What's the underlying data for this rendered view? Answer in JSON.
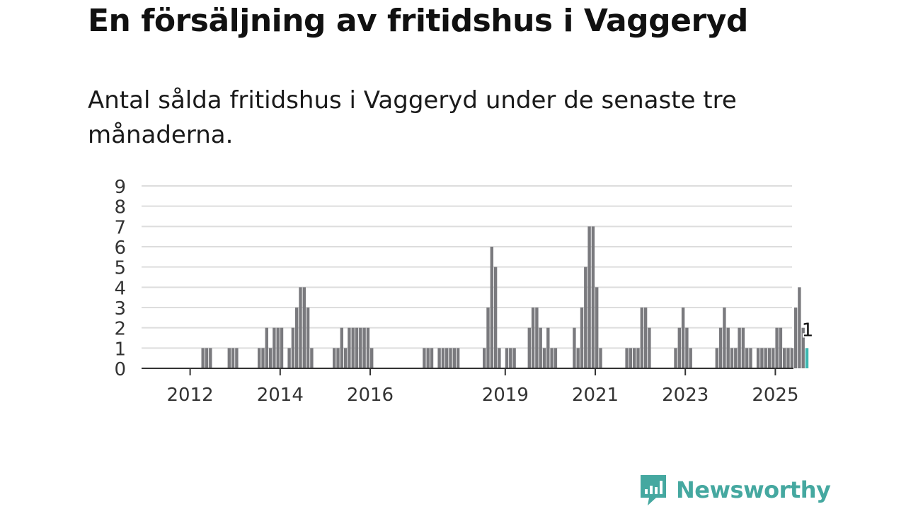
{
  "header": {
    "title": "En försäljning av fritidshus i Vaggeryd",
    "subtitle": "Antal sålda fritidshus i Vaggeryd under de senaste tre månaderna."
  },
  "brand": {
    "name": "Newsworthy",
    "icon": "newsworthy-bar-chart-logo-icon"
  },
  "colors": {
    "bar": "#7a7a7e",
    "highlight": "#3cb7b0",
    "grid": "#dddddd",
    "axis": "#333333",
    "brand": "#45a8a0"
  },
  "chart_data": {
    "type": "bar",
    "title": "En försäljning av fritidshus i Vaggeryd",
    "subtitle": "Antal sålda fritidshus i Vaggeryd under de senaste tre månaderna.",
    "xlabel": "",
    "ylabel": "",
    "ylim": [
      0,
      9
    ],
    "y_ticks": [
      0,
      1,
      2,
      3,
      4,
      5,
      6,
      7,
      8,
      9
    ],
    "x_ticks": [
      "2012",
      "2014",
      "2016",
      "2019",
      "2021",
      "2023",
      "2025"
    ],
    "x_start": "2011-01",
    "x_end": "2025-01",
    "grid": true,
    "legend": "none",
    "highlight_label": "1",
    "bars": [
      {
        "month": "2012-04",
        "value": 1
      },
      {
        "month": "2012-05",
        "value": 1
      },
      {
        "month": "2012-06",
        "value": 1
      },
      {
        "month": "2012-11",
        "value": 1
      },
      {
        "month": "2012-12",
        "value": 1
      },
      {
        "month": "2013-01",
        "value": 1
      },
      {
        "month": "2013-07",
        "value": 1
      },
      {
        "month": "2013-08",
        "value": 1
      },
      {
        "month": "2013-09",
        "value": 2
      },
      {
        "month": "2013-10",
        "value": 1
      },
      {
        "month": "2013-11",
        "value": 2
      },
      {
        "month": "2013-12",
        "value": 2
      },
      {
        "month": "2014-01",
        "value": 2
      },
      {
        "month": "2014-03",
        "value": 1
      },
      {
        "month": "2014-04",
        "value": 2
      },
      {
        "month": "2014-05",
        "value": 3
      },
      {
        "month": "2014-06",
        "value": 4
      },
      {
        "month": "2014-07",
        "value": 4
      },
      {
        "month": "2014-08",
        "value": 3
      },
      {
        "month": "2014-09",
        "value": 1
      },
      {
        "month": "2015-03",
        "value": 1
      },
      {
        "month": "2015-04",
        "value": 1
      },
      {
        "month": "2015-05",
        "value": 2
      },
      {
        "month": "2015-06",
        "value": 1
      },
      {
        "month": "2015-07",
        "value": 2
      },
      {
        "month": "2015-08",
        "value": 2
      },
      {
        "month": "2015-09",
        "value": 2
      },
      {
        "month": "2015-10",
        "value": 2
      },
      {
        "month": "2015-11",
        "value": 2
      },
      {
        "month": "2015-12",
        "value": 2
      },
      {
        "month": "2016-01",
        "value": 1
      },
      {
        "month": "2017-03",
        "value": 1
      },
      {
        "month": "2017-04",
        "value": 1
      },
      {
        "month": "2017-05",
        "value": 1
      },
      {
        "month": "2017-07",
        "value": 1
      },
      {
        "month": "2017-08",
        "value": 1
      },
      {
        "month": "2017-09",
        "value": 1
      },
      {
        "month": "2017-10",
        "value": 1
      },
      {
        "month": "2017-11",
        "value": 1
      },
      {
        "month": "2017-12",
        "value": 1
      },
      {
        "month": "2018-07",
        "value": 1
      },
      {
        "month": "2018-08",
        "value": 3
      },
      {
        "month": "2018-09",
        "value": 6
      },
      {
        "month": "2018-10",
        "value": 5
      },
      {
        "month": "2018-11",
        "value": 1
      },
      {
        "month": "2019-01",
        "value": 1
      },
      {
        "month": "2019-02",
        "value": 1
      },
      {
        "month": "2019-03",
        "value": 1
      },
      {
        "month": "2019-07",
        "value": 2
      },
      {
        "month": "2019-08",
        "value": 3
      },
      {
        "month": "2019-09",
        "value": 3
      },
      {
        "month": "2019-10",
        "value": 2
      },
      {
        "month": "2019-11",
        "value": 1
      },
      {
        "month": "2019-12",
        "value": 2
      },
      {
        "month": "2020-01",
        "value": 1
      },
      {
        "month": "2020-02",
        "value": 1
      },
      {
        "month": "2020-07",
        "value": 2
      },
      {
        "month": "2020-08",
        "value": 1
      },
      {
        "month": "2020-09",
        "value": 3
      },
      {
        "month": "2020-10",
        "value": 5
      },
      {
        "month": "2020-11",
        "value": 7
      },
      {
        "month": "2020-12",
        "value": 7
      },
      {
        "month": "2021-01",
        "value": 4
      },
      {
        "month": "2021-02",
        "value": 1
      },
      {
        "month": "2021-09",
        "value": 1
      },
      {
        "month": "2021-10",
        "value": 1
      },
      {
        "month": "2021-11",
        "value": 1
      },
      {
        "month": "2021-12",
        "value": 1
      },
      {
        "month": "2022-01",
        "value": 3
      },
      {
        "month": "2022-02",
        "value": 3
      },
      {
        "month": "2022-03",
        "value": 2
      },
      {
        "month": "2022-10",
        "value": 1
      },
      {
        "month": "2022-11",
        "value": 2
      },
      {
        "month": "2022-12",
        "value": 3
      },
      {
        "month": "2023-01",
        "value": 2
      },
      {
        "month": "2023-02",
        "value": 1
      },
      {
        "month": "2023-09",
        "value": 1
      },
      {
        "month": "2023-10",
        "value": 2
      },
      {
        "month": "2023-11",
        "value": 3
      },
      {
        "month": "2023-12",
        "value": 2
      },
      {
        "month": "2024-01",
        "value": 1
      },
      {
        "month": "2024-02",
        "value": 1
      },
      {
        "month": "2024-03",
        "value": 2
      },
      {
        "month": "2024-04",
        "value": 2
      },
      {
        "month": "2024-05",
        "value": 1
      },
      {
        "month": "2024-06",
        "value": 1
      },
      {
        "month": "2024-08",
        "value": 1
      },
      {
        "month": "2024-09",
        "value": 1
      },
      {
        "month": "2024-10",
        "value": 1
      },
      {
        "month": "2024-11",
        "value": 1
      },
      {
        "month": "2024-12",
        "value": 1
      },
      {
        "month": "2025-01",
        "value": 2
      },
      {
        "month": "2025-02",
        "value": 2
      },
      {
        "month": "2025-03",
        "value": 1
      },
      {
        "month": "2025-04",
        "value": 1
      },
      {
        "month": "2025-05",
        "value": 1
      },
      {
        "month": "2025-06",
        "value": 3
      },
      {
        "month": "2025-07",
        "value": 4
      },
      {
        "month": "2025-08",
        "value": 2
      },
      {
        "month": "2025-09",
        "value": 1,
        "highlight": true
      }
    ]
  }
}
